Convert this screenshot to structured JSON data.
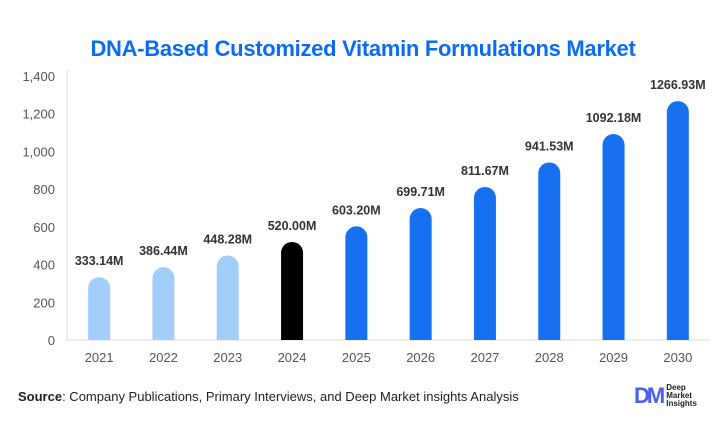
{
  "chart_data": {
    "type": "bar",
    "title": "DNA-Based Customized Vitamin Formulations Market",
    "categories": [
      "2021",
      "2022",
      "2023",
      "2024",
      "2025",
      "2026",
      "2027",
      "2028",
      "2029",
      "2030"
    ],
    "values": [
      333.14,
      386.44,
      448.28,
      520.0,
      603.2,
      699.71,
      811.67,
      941.53,
      1092.18,
      1266.93
    ],
    "data_labels": [
      "333.14M",
      "386.44M",
      "448.28M",
      "520.00M",
      "603.20M",
      "699.71M",
      "811.67M",
      "941.53M",
      "1092.18M",
      "1266.93M"
    ],
    "ylim": [
      0,
      1400
    ],
    "yticks": [
      0,
      200,
      400,
      600,
      800,
      1000,
      1200,
      1400
    ],
    "ytick_labels": [
      "0",
      "200",
      "400",
      "600",
      "800",
      "1,000",
      "1,200",
      "1,400"
    ],
    "bar_colors": [
      "#a3cdfb",
      "#a3cdfb",
      "#a3cdfb",
      "#000000",
      "#1670f0",
      "#1670f0",
      "#1670f0",
      "#1670f0",
      "#1670f0",
      "#1670f0"
    ],
    "grid": false,
    "xlabel": "",
    "ylabel": ""
  },
  "source": {
    "label": "Source",
    "text": ": Company Publications, Primary Interviews, and Deep Market insights Analysis"
  },
  "logo": {
    "mark": "DM",
    "line1": "Deep",
    "line2": "Market",
    "line3": "Insights"
  },
  "colors": {
    "title": "#0b6cf2",
    "historical": "#a3cdfb",
    "base_year": "#000000",
    "forecast": "#1670f0"
  }
}
